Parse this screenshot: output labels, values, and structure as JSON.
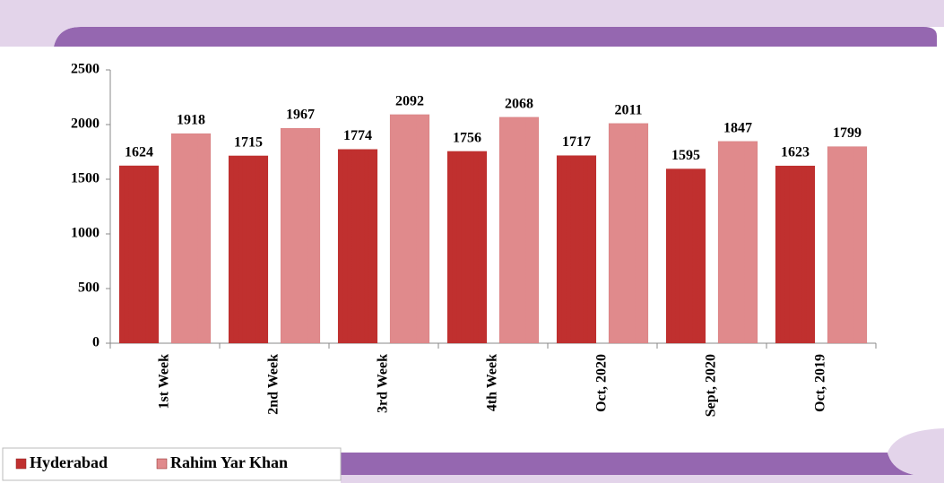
{
  "chart_data": {
    "type": "bar",
    "categories": [
      "1st Week",
      "2nd Week",
      "3rd Week",
      "4th Week",
      "Oct, 2020",
      "Sept, 2020",
      "Oct, 2019"
    ],
    "series": [
      {
        "name": "Hyderabad",
        "color": "#c0302f",
        "values": [
          1624,
          1715,
          1774,
          1756,
          1717,
          1595,
          1623
        ]
      },
      {
        "name": "Rahim Yar Khan",
        "color": "#e08a8c",
        "values": [
          1918,
          1967,
          2092,
          2068,
          2011,
          1847,
          1799
        ]
      }
    ],
    "ylim": [
      0,
      2500
    ],
    "yticks": [
      0,
      500,
      1000,
      1500,
      2000,
      2500
    ],
    "grid": false,
    "legend": "bottom-left"
  }
}
